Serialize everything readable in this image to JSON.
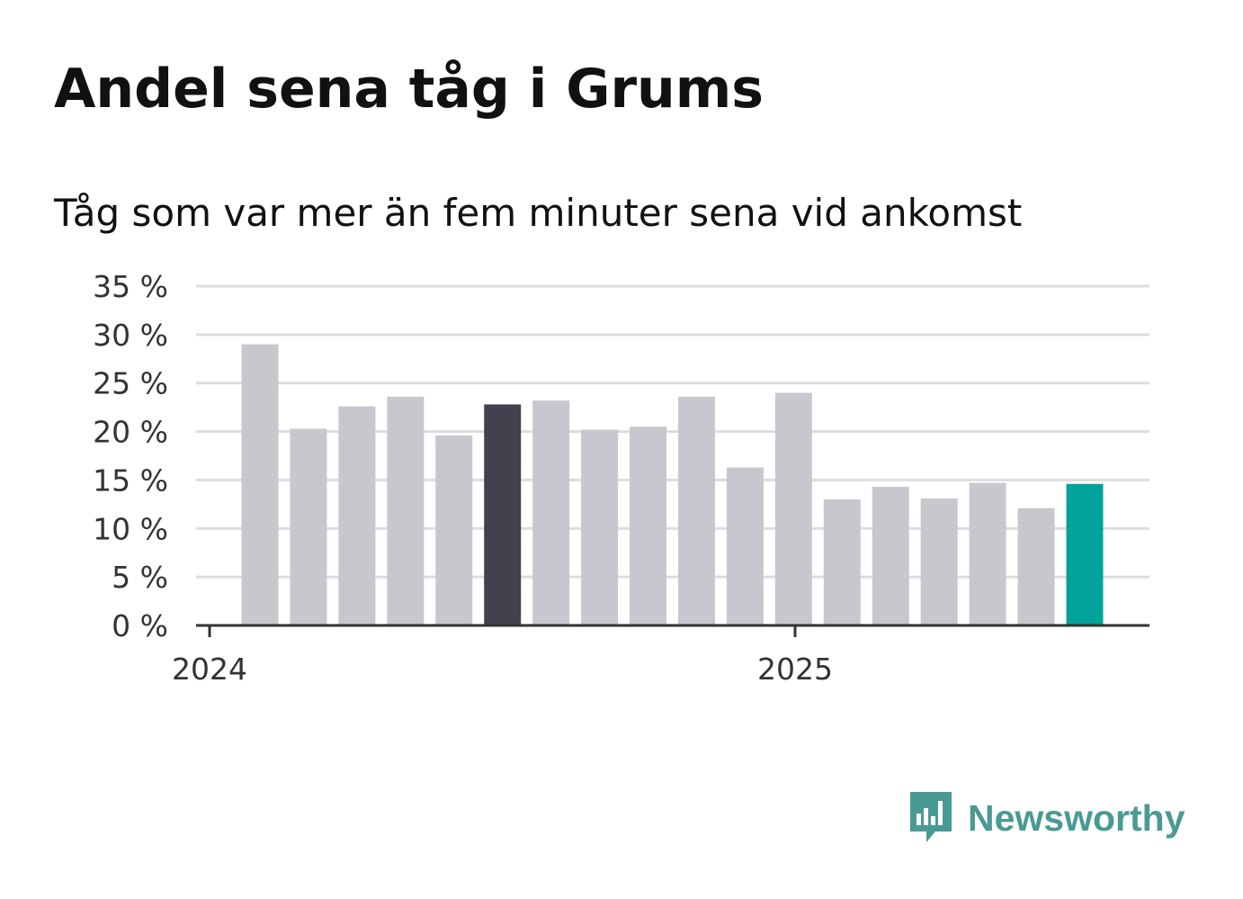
{
  "title": "Andel sena tåg i Grums",
  "subtitle": "Tåg som var mer än fem minuter sena vid ankomst",
  "brand": {
    "name": "Newsworthy",
    "icon": "newsworthy-logo-icon",
    "color": "#4a9a94"
  },
  "chart_data": {
    "type": "bar",
    "title": "Andel sena tåg i Grums",
    "subtitle": "Tåg som var mer än fem minuter sena vid ankomst",
    "xlabel": "",
    "ylabel": "",
    "ylim": [
      0,
      35
    ],
    "yticks": [
      0,
      5,
      10,
      15,
      20,
      25,
      30,
      35
    ],
    "ytick_labels": [
      "0 %",
      "5 %",
      "10 %",
      "15 %",
      "20 %",
      "25 %",
      "30 %",
      "35 %"
    ],
    "xtick_labels": [
      "2024",
      "2025"
    ],
    "grid": true,
    "legend": "none",
    "series": [
      {
        "values": [
          29.0,
          20.3,
          22.6,
          23.6,
          19.6,
          22.8,
          23.2,
          20.2,
          20.5,
          23.6,
          16.3,
          24.0,
          13.0,
          14.3,
          13.1,
          14.7,
          12.1,
          14.6
        ]
      }
    ],
    "highlight": {
      "dark_index": 5,
      "accent_index": 17
    },
    "colors": {
      "default": "#c8c7ce",
      "dark": "#43414d",
      "accent": "#00a39a",
      "grid": "#dddddd",
      "axis": "#333333"
    }
  }
}
